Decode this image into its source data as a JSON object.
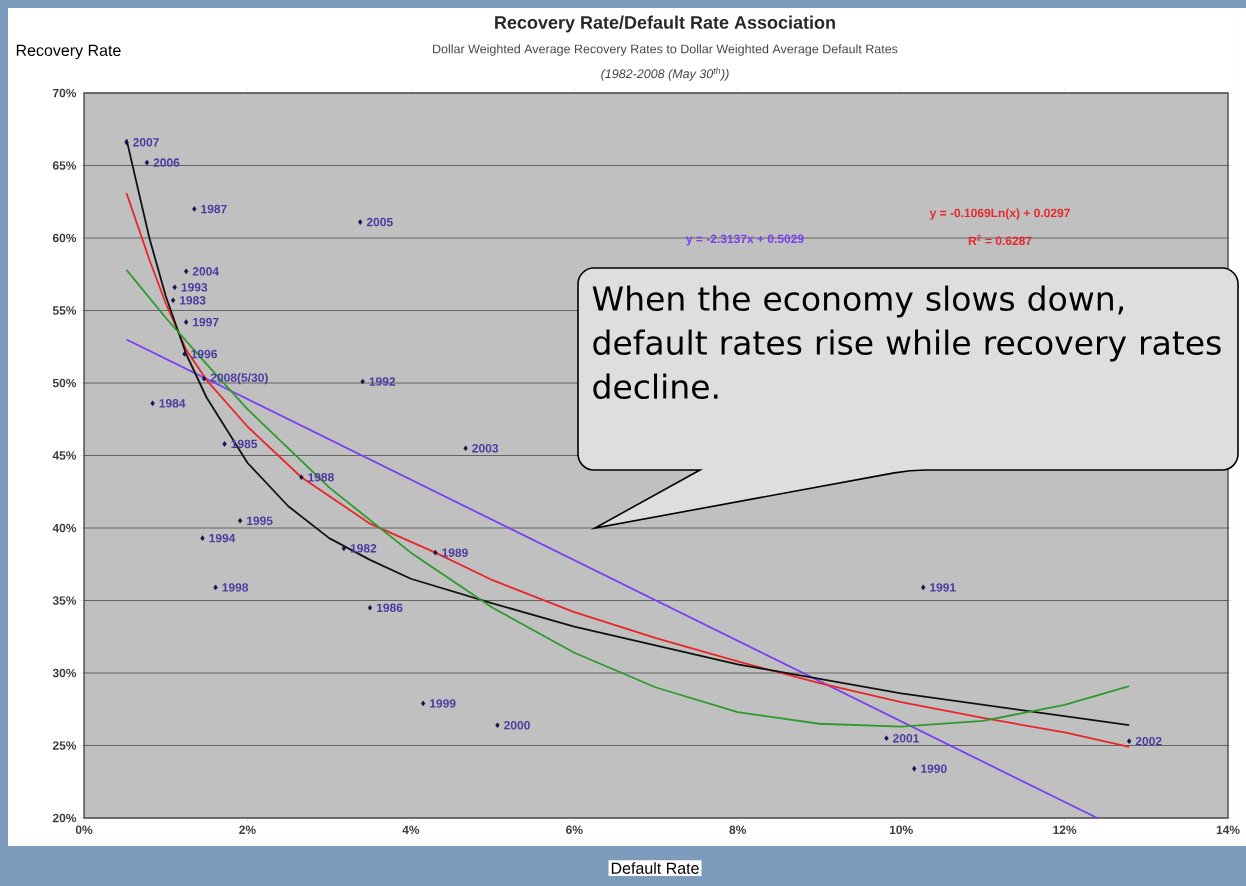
{
  "chart_data": {
    "type": "scatter",
    "title": "Recovery Rate/Default Rate Association",
    "subtitle": "Dollar Weighted Average Recovery Rates to Dollar Weighted Average Default Rates",
    "xlabel": "Default Rate",
    "ylabel": "Recovery Rate",
    "annotations": [
      "(1982-2008 (May 30$^{th}$))",
      "y = -2.3137x + 0.5029",
      "y = -0.1069Ln(x) + 0.0297",
      "R$^{2}$ = 0.6287",
      "When the economy slows down, default rates rise while recovery rates decline.",
      {
        "text": "2007",
        "x": 0.52,
        "y": 66.6
      },
      {
        "text": "2006",
        "x": 0.77,
        "y": 65.2
      },
      {
        "text": "1987",
        "x": 1.35,
        "y": 62.0
      },
      {
        "text": "2005",
        "x": 3.38,
        "y": 61.1
      },
      {
        "text": "2004",
        "x": 1.25,
        "y": 57.7
      },
      {
        "text": "1993",
        "x": 1.11,
        "y": 56.6
      },
      {
        "text": "1983",
        "x": 1.09,
        "y": 55.7
      },
      {
        "text": "1997",
        "x": 1.25,
        "y": 54.2
      },
      {
        "text": "1996",
        "x": 1.23,
        "y": 52.0
      },
      {
        "text": "2008(5/30)",
        "x": 1.47,
        "y": 50.3
      },
      {
        "text": "1992",
        "x": 3.41,
        "y": 50.1
      },
      {
        "text": "1984",
        "x": 0.84,
        "y": 48.6
      },
      {
        "text": "1985",
        "x": 1.72,
        "y": 45.8
      },
      {
        "text": "2003",
        "x": 4.67,
        "y": 45.5
      },
      {
        "text": "1988",
        "x": 2.66,
        "y": 43.5
      },
      {
        "text": "1995",
        "x": 1.91,
        "y": 40.5
      },
      {
        "text": "1994",
        "x": 1.45,
        "y": 39.3
      },
      {
        "text": "1982",
        "x": 3.18,
        "y": 38.6
      },
      {
        "text": "1989",
        "x": 4.3,
        "y": 38.3
      },
      {
        "text": "1998",
        "x": 1.61,
        "y": 35.9
      },
      {
        "text": "1986",
        "x": 3.5,
        "y": 34.5
      },
      {
        "text": "1991",
        "x": 10.27,
        "y": 35.9
      },
      {
        "text": "1999",
        "x": 4.15,
        "y": 27.9
      },
      {
        "text": "2000",
        "x": 5.06,
        "y": 26.4
      },
      {
        "text": "2001",
        "x": 9.82,
        "y": 25.5
      },
      {
        "text": "1990",
        "x": 10.16,
        "y": 23.4
      },
      {
        "text": "2002",
        "x": 12.79,
        "y": 25.3
      }
    ],
    "xlim": [
      0,
      14
    ],
    "ylim": [
      20,
      70
    ],
    "xticks": [
      {
        "value": 0,
        "label": "0%"
      },
      {
        "value": 2,
        "label": "2%"
      },
      {
        "value": 4,
        "label": "4%"
      },
      {
        "value": 6,
        "label": "6%"
      },
      {
        "value": 8,
        "label": "8%"
      },
      {
        "value": 10,
        "label": "10%"
      },
      {
        "value": 12,
        "label": "12%"
      },
      {
        "value": 14,
        "label": "14%"
      }
    ],
    "yticks": [
      {
        "value": 20,
        "label": "20%"
      },
      {
        "value": 25,
        "label": "25%"
      },
      {
        "value": 30,
        "label": "30%"
      },
      {
        "value": 35,
        "label": "35%"
      },
      {
        "value": 40,
        "label": "40%"
      },
      {
        "value": 45,
        "label": "45%"
      },
      {
        "value": 50,
        "label": "50%"
      },
      {
        "value": 55,
        "label": "55%"
      },
      {
        "value": 60,
        "label": "60%"
      },
      {
        "value": 65,
        "label": "65%"
      },
      {
        "value": 70,
        "label": "70%"
      }
    ],
    "grid": "y",
    "series": [
      {
        "type": "scatter",
        "marker": "diamond",
        "color": "#1a1050",
        "x": [
          0.52,
          0.77,
          1.35,
          3.38,
          1.25,
          1.11,
          1.09,
          1.25,
          1.23,
          1.47,
          3.41,
          0.84,
          1.72,
          4.67,
          2.66,
          1.91,
          1.45,
          3.18,
          4.3,
          1.61,
          3.5,
          10.27,
          4.15,
          5.06,
          9.82,
          10.16,
          12.79
        ],
        "values": [
          66.6,
          65.2,
          62.0,
          61.1,
          57.7,
          56.6,
          55.7,
          54.2,
          52.0,
          50.3,
          50.1,
          48.6,
          45.8,
          45.5,
          43.5,
          40.5,
          39.3,
          38.6,
          38.3,
          35.9,
          34.5,
          35.9,
          27.9,
          26.4,
          25.5,
          23.4,
          25.3
        ]
      },
      {
        "type": "line",
        "color": "#7b3ff2",
        "x": [
          0.52,
          12.4
        ],
        "values": [
          53.0,
          20.0
        ]
      },
      {
        "type": "line",
        "color": "#e8262a",
        "x": [
          0.52,
          0.8,
          1.0,
          1.25,
          1.5,
          2,
          2.66,
          3.5,
          4.3,
          5,
          6,
          7,
          8,
          9,
          10,
          11,
          12,
          12.79
        ],
        "values": [
          63.1,
          58.5,
          55.5,
          52.3,
          50.2,
          47.0,
          43.5,
          40.3,
          38.3,
          36.4,
          34.2,
          32.4,
          30.8,
          29.3,
          28.0,
          26.9,
          25.9,
          24.9
        ]
      },
      {
        "type": "line",
        "color": "#111111",
        "x": [
          0.52,
          0.8,
          1.0,
          1.25,
          1.5,
          2,
          2.5,
          3,
          3.5,
          4,
          5,
          6,
          8,
          10,
          12.79
        ],
        "values": [
          66.8,
          60.0,
          56.0,
          52.0,
          49.0,
          44.5,
          41.5,
          39.3,
          37.8,
          36.5,
          34.8,
          33.2,
          30.6,
          28.6,
          26.4
        ]
      },
      {
        "type": "line",
        "color": "#2e9a2e",
        "x": [
          0.52,
          1.0,
          1.5,
          2,
          3,
          4,
          5,
          6,
          7,
          8,
          9,
          10,
          11,
          12,
          12.79
        ],
        "values": [
          57.8,
          54.5,
          51.3,
          48.2,
          42.8,
          38.3,
          34.5,
          31.4,
          29.0,
          27.3,
          26.5,
          26.3,
          26.7,
          27.8,
          29.1
        ]
      }
    ]
  }
}
